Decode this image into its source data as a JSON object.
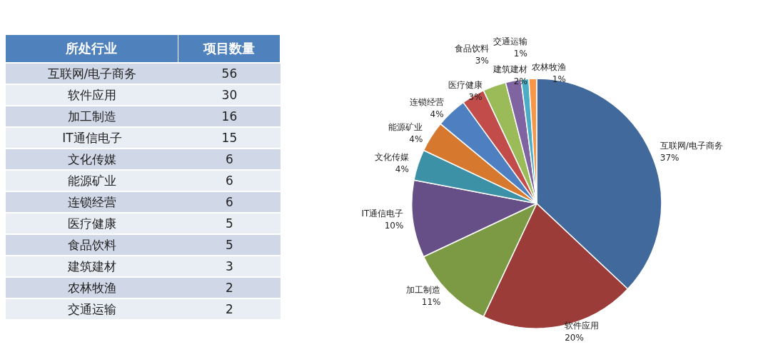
{
  "chart_data": [
    {
      "type": "other",
      "xlabel": "所处行业",
      "ylabel": "项目数量",
      "categories": [
        "互联网/电子商务",
        "软件应用",
        "加工制造",
        "IT通信电子",
        "文化传媒",
        "能源矿业",
        "连锁经营",
        "医疗健康",
        "食品饮料",
        "建筑建材",
        "农林牧渔",
        "交通运输"
      ],
      "values": [
        56,
        30,
        16,
        15,
        6,
        6,
        6,
        5,
        5,
        3,
        2,
        2
      ],
      "data_labels": true
    },
    {
      "type": "pie",
      "categories": [
        "互联网/电子商务",
        "软件应用",
        "加工制造",
        "IT通信电子",
        "文化传媒",
        "能源矿业",
        "连锁经营",
        "医疗健康",
        "食品饮料",
        "建筑建材",
        "交通运输",
        "农林牧渔"
      ],
      "values": [
        37,
        20,
        11,
        10,
        4,
        4,
        4,
        3,
        3,
        2,
        1,
        1
      ],
      "value_labels": [
        "37%",
        "20%",
        "11%",
        "10%",
        "4%",
        "4%",
        "4%",
        "3%",
        "3%",
        "2%",
        "1%",
        "1%"
      ],
      "colors": [
        "#41699c",
        "#9c3c39",
        "#7b9a43",
        "#664f86",
        "#3d91a7",
        "#d6782e",
        "#4e7fc0",
        "#c24c4a",
        "#9bbb59",
        "#8064a2",
        "#4bacc6",
        "#f79646"
      ],
      "legend": false
    }
  ]
}
